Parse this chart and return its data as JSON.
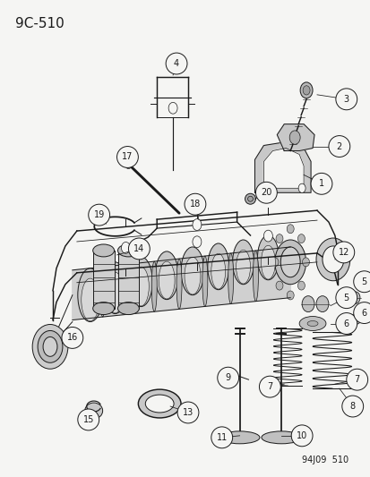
{
  "title": "9C-510",
  "footer": "94J09  510",
  "bg_color": "#f5f5f3",
  "line_color": "#1a1a1a",
  "title_fontsize": 11,
  "footer_fontsize": 7,
  "fig_width": 4.14,
  "fig_height": 5.33,
  "dpi": 100,
  "label_r": 0.028,
  "label_fontsize": 7.0
}
